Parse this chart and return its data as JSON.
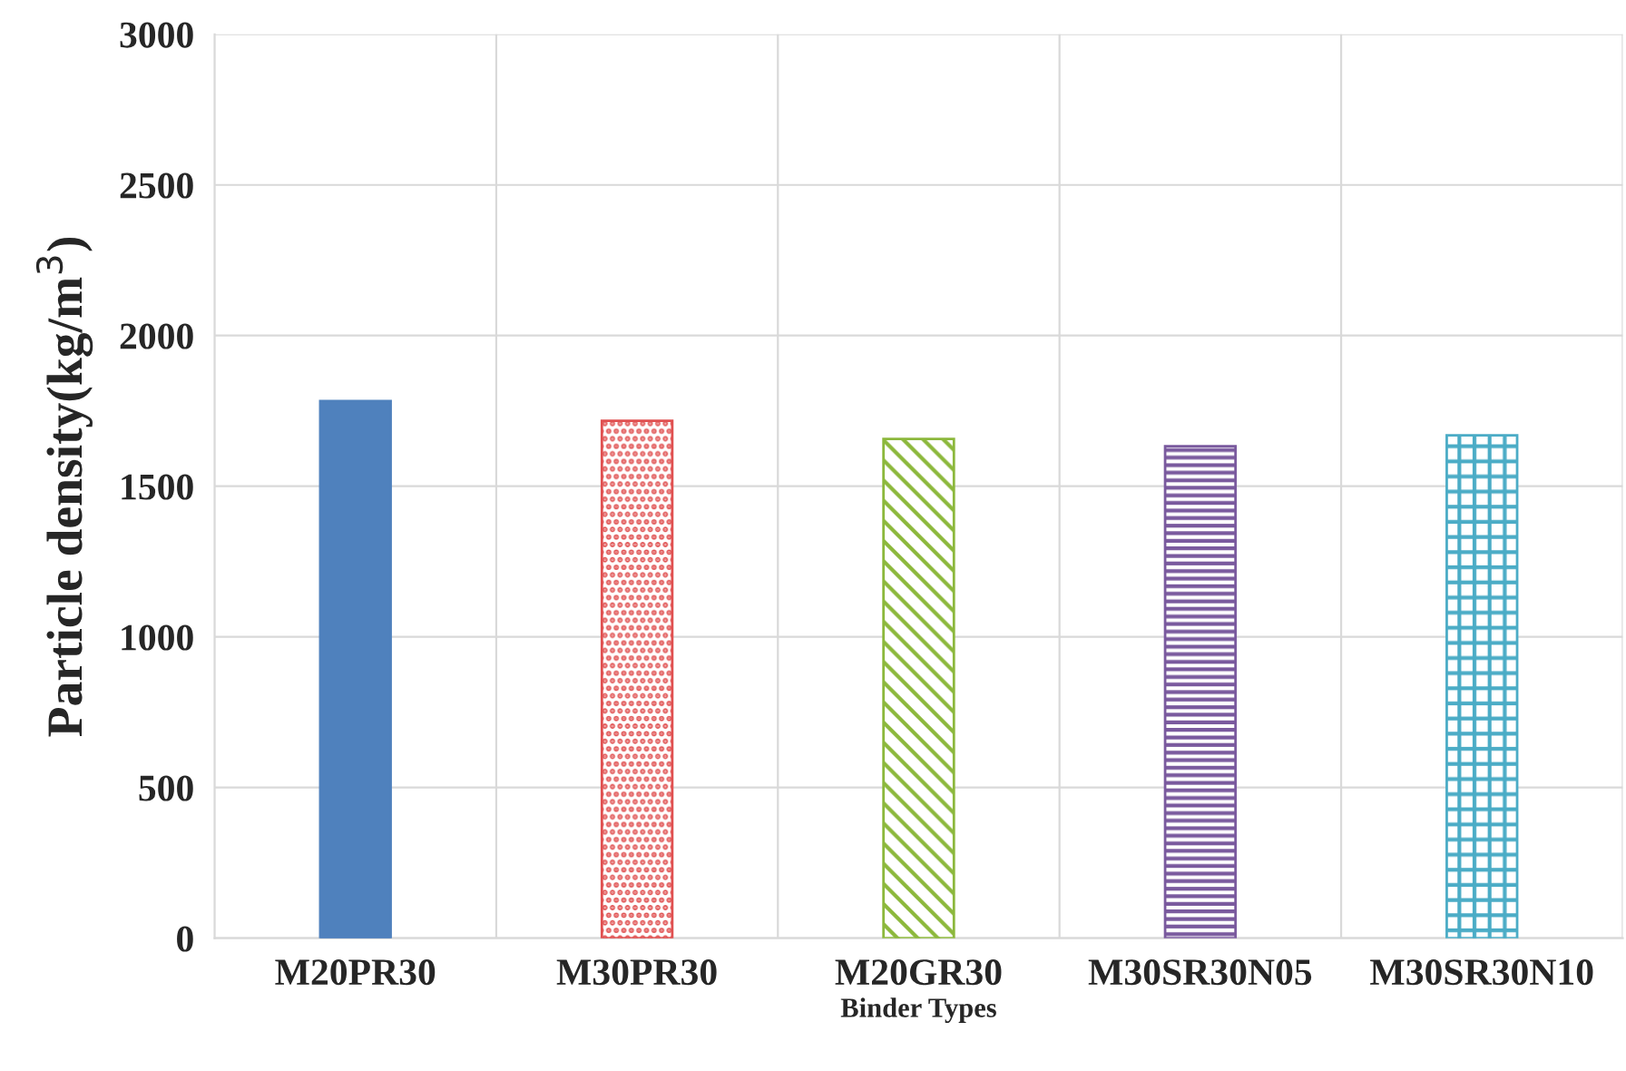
{
  "chart_data": {
    "type": "bar",
    "xlabel": "Binder Types",
    "ylabel": "Particle density(kg/m$^{3}$)",
    "categories": [
      "M20PR30",
      "M30PR30",
      "M20GR30",
      "M30SR30N05",
      "M30SR30N10"
    ],
    "values": [
      1783,
      1717,
      1657,
      1633,
      1669
    ],
    "colors": [
      "#4f81bd",
      "#e05050",
      "#8cb83c",
      "#7a5a9e",
      "#4bacc6"
    ],
    "ylim": [
      0,
      3000
    ],
    "yticks": [
      0,
      500,
      1000,
      1500,
      2000,
      2500,
      3000
    ],
    "grid": true
  }
}
